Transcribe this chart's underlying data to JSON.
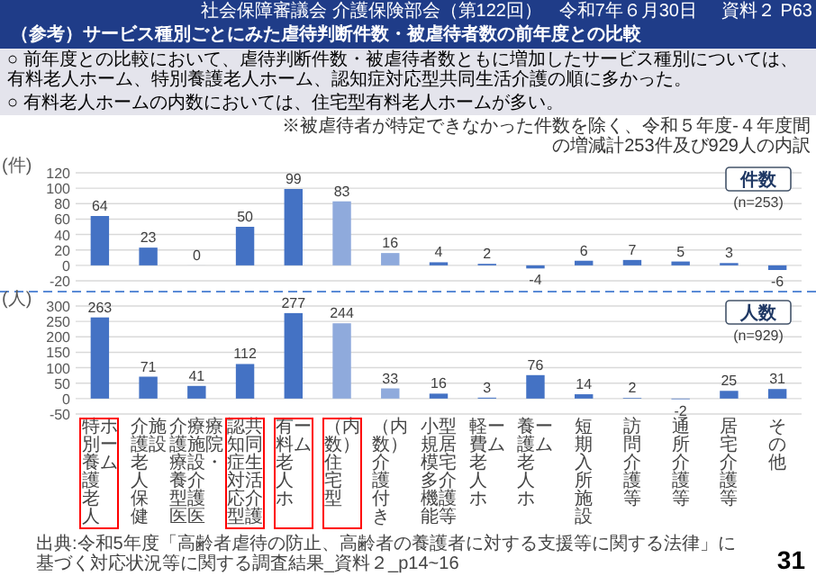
{
  "chart_data": [
    {
      "type": "bar",
      "title": "（参考）サービス種別ごとにみた虐待判断件数・被虐待者数の前年度との比較",
      "ylabel": "(件)",
      "annotations": [
        "社会保障審議会 介護保険部会（第122回）",
        "令和7年６月30日",
        "資料２ P63",
        "○ 前年度との比較において、虐待判断件数・被虐待者数ともに増加したサービス種別については、有料老人ホーム、特別養護老人ホーム、認知症対応型共同生活介護の順に多かった。",
        "○ 有料老人ホームの内数においては、住宅型有料老人ホームが多い。",
        "※被虐待者が特定できなかった件数を除く、令和５年度-４年度間の増減計253件及び929人の内訳",
        "件数",
        "(n=253)"
      ],
      "categories": [
        null,
        null,
        null,
        null,
        null,
        null,
        null,
        null,
        null,
        null,
        null,
        null,
        null,
        null,
        null
      ],
      "values": [
        64,
        23,
        0,
        50,
        99,
        83,
        16,
        4,
        2,
        -4,
        6,
        7,
        5,
        3,
        -6
      ],
      "colors": [
        "#4472c4",
        "#4472c4",
        "#4472c4",
        "#4472c4",
        "#4472c4",
        "#8faadc",
        "#8faadc",
        "#4472c4",
        "#4472c4",
        "#4472c4",
        "#4472c4",
        "#4472c4",
        "#4472c4",
        "#4472c4",
        "#4472c4"
      ],
      "ylim": [
        -20,
        120
      ],
      "yticks": [
        -20,
        0,
        20,
        40,
        60,
        80,
        100,
        120
      ],
      "grid": "y",
      "data_labels": true,
      "tick_labels": "y"
    },
    {
      "type": "bar",
      "ylabel": "(人)",
      "annotations": [
        "人数",
        "(n=929)",
        "出典:令和5年度「高齢者虐待の防止、高齢者の養護者に対する支援等に関する法律」に基づく対応状況等に関する調査結果_資料２_p14~16",
        "31"
      ],
      "categories": [
        "特別養護老人ホーム",
        "介護老人保健施設",
        "介護療養型医療施設・介護医療院",
        "認知症対応型共同生活介護",
        "有料老人ホーム",
        "（内数）住宅型",
        "（内数）介護付き",
        "小規模多機能型居宅介護等",
        "軽費老人ホーム",
        "養護老人ホーム",
        "短期入所施設",
        "訪問介護等",
        "通所介護等",
        "居宅介護等",
        "その他"
      ],
      "values": [
        263,
        71,
        41,
        112,
        277,
        244,
        33,
        16,
        3,
        76,
        14,
        2,
        -2,
        25,
        31
      ],
      "colors": [
        "#4472c4",
        "#4472c4",
        "#4472c4",
        "#4472c4",
        "#4472c4",
        "#8faadc",
        "#8faadc",
        "#4472c4",
        "#4472c4",
        "#4472c4",
        "#4472c4",
        "#4472c4",
        "#4472c4",
        "#4472c4",
        "#4472c4"
      ],
      "ylim": [
        -50,
        300
      ],
      "yticks": [
        -50,
        0,
        50,
        100,
        150,
        200,
        250,
        300
      ],
      "grid": "y",
      "data_labels": true
    }
  ]
}
